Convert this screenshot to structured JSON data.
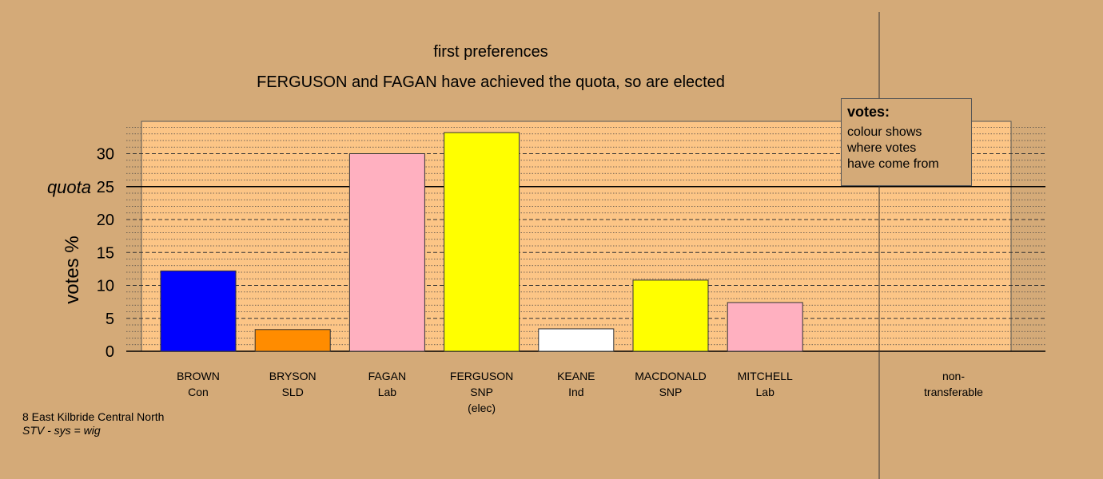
{
  "chart_data": {
    "type": "bar",
    "title": "first preferences",
    "subtitle": "FERGUSON and FAGAN have achieved the quota, so are elected",
    "ylabel": "votes %",
    "ylim": [
      0,
      34
    ],
    "yticks": [
      0,
      5,
      10,
      15,
      20,
      25,
      30
    ],
    "quota": {
      "label": "quota",
      "value": 25
    },
    "candidates": [
      {
        "name": "BROWN",
        "party": "Con",
        "note": "",
        "value": 12.2,
        "color": "#0000ff"
      },
      {
        "name": "BRYSON",
        "party": "SLD",
        "note": "",
        "value": 3.3,
        "color": "#ff8c00"
      },
      {
        "name": "FAGAN",
        "party": "Lab",
        "note": "",
        "value": 30.0,
        "color": "#ffb0c0"
      },
      {
        "name": "FERGUSON",
        "party": "SNP",
        "note": "(elec)",
        "value": 33.2,
        "color": "#ffff00"
      },
      {
        "name": "KEANE",
        "party": "Ind",
        "note": "",
        "value": 3.4,
        "color": "#ffffff"
      },
      {
        "name": "MACDONALD",
        "party": "SNP",
        "note": "",
        "value": 10.8,
        "color": "#ffff00"
      },
      {
        "name": "MITCHELL",
        "party": "Lab",
        "note": "",
        "value": 7.4,
        "color": "#ffb0c0"
      }
    ],
    "non_transferable": {
      "line1": "non-",
      "line2": "transferable",
      "value": 0
    },
    "grid": true,
    "legend": {
      "title": "votes:",
      "lines": [
        "colour shows",
        "where votes",
        "have come from"
      ],
      "placement": "top-right"
    }
  },
  "footer": {
    "constituency": "8 East Kilbride Central North",
    "system": "STV - sys = wig"
  }
}
